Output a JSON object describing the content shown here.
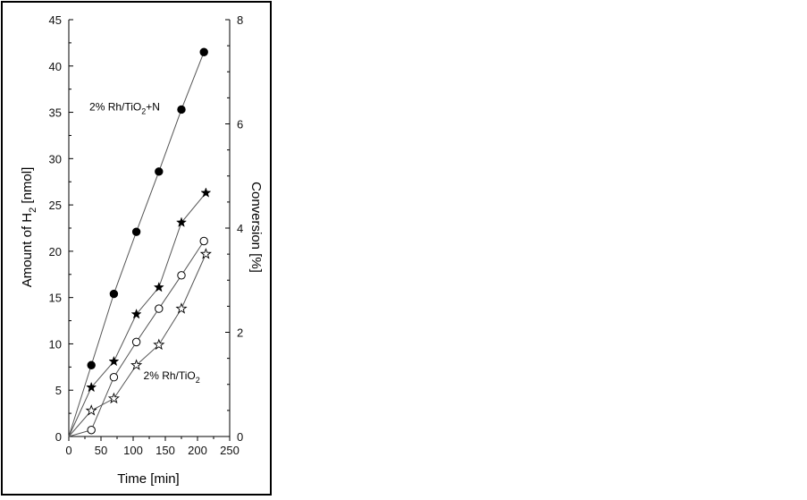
{
  "chart_data": {
    "type": "line",
    "xlabel": "Time [min]",
    "ylabel_left": {
      "main": "Amount of H",
      "sub": "2",
      "suffix": " [nmol]"
    },
    "ylabel_right": "Conversion [%]",
    "xlim": [
      0,
      250
    ],
    "ylim_left": [
      0,
      45
    ],
    "ylim_right": [
      0,
      8
    ],
    "x_ticks": [
      "0",
      "50",
      "100",
      "150",
      "200",
      "250"
    ],
    "y_ticks_left": [
      "0",
      "5",
      "10",
      "15",
      "20",
      "25",
      "30",
      "35",
      "40",
      "45"
    ],
    "y_ticks_right": [
      "0",
      "2",
      "4",
      "6",
      "8"
    ],
    "grid": false,
    "annotations": [
      {
        "id": "rh-tio2-n",
        "parts": [
          "2% Rh/TiO",
          "2",
          "+N"
        ],
        "x": 32,
        "y": 35.2
      },
      {
        "id": "rh-tio2",
        "parts": [
          "2% Rh/TiO",
          "2"
        ],
        "x": 116,
        "y": 6.2
      }
    ],
    "series": [
      {
        "id": "a",
        "marker": "filled-circle",
        "axis": "left",
        "x": [
          0,
          35,
          70,
          105,
          140,
          175,
          210
        ],
        "y": [
          0,
          7.7,
          15.4,
          22.1,
          28.6,
          35.3,
          41.5
        ]
      },
      {
        "id": "b",
        "marker": "filled-star",
        "axis": "left",
        "x": [
          0,
          35,
          70,
          105,
          140,
          175,
          213
        ],
        "y": [
          0,
          5.3,
          8.1,
          13.2,
          16.1,
          23.1,
          26.3
        ]
      },
      {
        "id": "c",
        "marker": "open-circle",
        "axis": "left",
        "x": [
          0,
          35,
          70,
          105,
          140,
          175,
          210
        ],
        "y": [
          0,
          0.7,
          6.4,
          10.2,
          13.8,
          17.4,
          21.1
        ]
      },
      {
        "id": "d",
        "marker": "open-star",
        "axis": "left",
        "x": [
          0,
          35,
          70,
          105,
          140,
          175,
          213
        ],
        "y": [
          0,
          2.8,
          4.1,
          7.7,
          9.9,
          13.8,
          19.7
        ]
      }
    ],
    "colors": {
      "line": "#555555",
      "marker": "#000000",
      "axis": "#000000"
    }
  }
}
